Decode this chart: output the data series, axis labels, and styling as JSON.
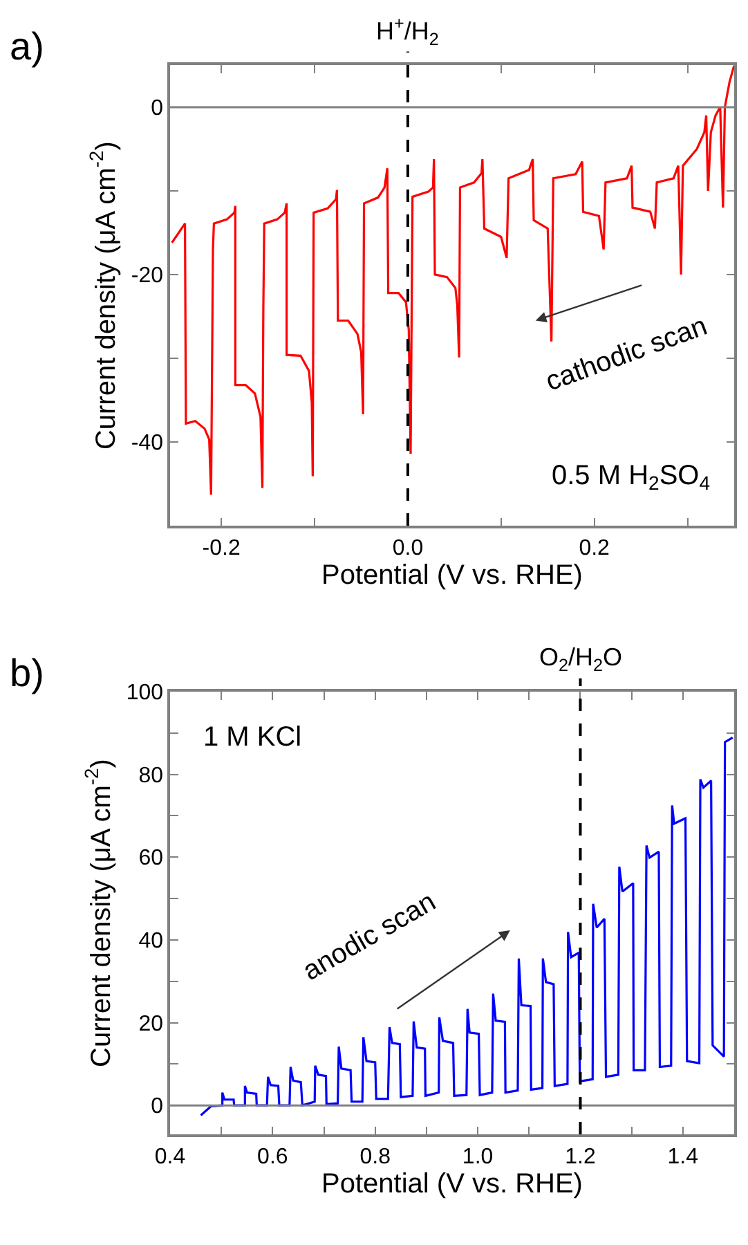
{
  "chart_data": [
    {
      "type": "line",
      "title": "a)",
      "xlabel": "Potential (V vs. RHE)",
      "ylabel": "Current density (μA cm$^{-2}$)",
      "x": [
        -0.253,
        -0.239,
        -0.238,
        -0.228,
        -0.218,
        -0.213,
        -0.211,
        -0.209,
        -0.208,
        -0.194,
        -0.186,
        -0.185,
        -0.185,
        -0.174,
        -0.164,
        -0.158,
        -0.156,
        -0.155,
        -0.154,
        -0.14,
        -0.132,
        -0.13,
        -0.13,
        -0.115,
        -0.106,
        -0.103,
        -0.102,
        -0.101,
        -0.086,
        -0.077,
        -0.076,
        -0.075,
        -0.064,
        -0.054,
        -0.05,
        -0.048,
        -0.047,
        -0.032,
        -0.025,
        -0.022,
        -0.021,
        -0.01,
        -0.002,
        0.001,
        0.003,
        0.005,
        0.022,
        0.027,
        0.028,
        0.029,
        0.042,
        0.051,
        0.053,
        0.055,
        0.056,
        0.071,
        0.079,
        0.08,
        0.082,
        0.1,
        0.106,
        0.108,
        0.13,
        0.134,
        0.135,
        0.15,
        0.154,
        0.156,
        0.18,
        0.187,
        0.188,
        0.205,
        0.21,
        0.212,
        0.235,
        0.24,
        0.241,
        0.26,
        0.265,
        0.267,
        0.285,
        0.29,
        0.291,
        0.293,
        0.295,
        0.31,
        0.318,
        0.32,
        0.322,
        0.325,
        0.33,
        0.335,
        0.338,
        0.34,
        0.345,
        0.35
      ],
      "series": [
        {
          "color": "#ff0000",
          "values": [
            -16.2,
            -13.9,
            -37.8,
            -37.5,
            -38.4,
            -39.7,
            -46.3,
            -17.0,
            -13.9,
            -13.4,
            -12.6,
            -11.8,
            -33.2,
            -33.2,
            -34.2,
            -37.0,
            -45.5,
            -24.4,
            -13.9,
            -13.4,
            -12.6,
            -11.5,
            -29.6,
            -29.7,
            -31.5,
            -35.3,
            -44.1,
            -12.6,
            -12.1,
            -11.0,
            -9.9,
            -25.5,
            -25.5,
            -27.1,
            -29.3,
            -36.7,
            -11.5,
            -10.8,
            -9.6,
            -7.3,
            -22.2,
            -22.2,
            -23.3,
            -26.6,
            -41.4,
            -10.7,
            -10.1,
            -9.6,
            -6.2,
            -20.0,
            -20.3,
            -21.6,
            -23.6,
            -29.9,
            -9.6,
            -9.0,
            -7.9,
            -6.2,
            -14.5,
            -15.5,
            -18.0,
            -8.5,
            -7.5,
            -6.2,
            -13.5,
            -14.5,
            -28.0,
            -8.5,
            -8.0,
            -6.5,
            -12.5,
            -13.0,
            -17.0,
            -9.0,
            -8.5,
            -7.0,
            -12.0,
            -12.5,
            -14.5,
            -9.0,
            -8.5,
            -7.0,
            -11.0,
            -20.0,
            -7.0,
            -5.0,
            -3.0,
            -1.0,
            -10.0,
            -3.0,
            -1.0,
            0.0,
            -12.0,
            0.0,
            3.0,
            5.0
          ]
        }
      ],
      "xlim": [
        -0.255,
        0.35
      ],
      "xticks": [
        {
          "value": -0.2,
          "label": "-0.2"
        },
        {
          "value": -0.1,
          "label": null
        },
        {
          "value": 0.0,
          "label": "0.0"
        },
        {
          "value": 0.1,
          "label": null
        },
        {
          "value": 0.2,
          "label": "0.2"
        },
        {
          "value": 0.3,
          "label": null
        }
      ],
      "ylim": [
        -50,
        5
      ],
      "yticks": [
        {
          "value": -40,
          "label": "-40"
        },
        {
          "value": -30,
          "label": null
        },
        {
          "value": -20,
          "label": "-20"
        },
        {
          "value": -10,
          "label": null
        },
        {
          "value": 0,
          "label": "0"
        }
      ],
      "ref_lines": [
        {
          "axis": "y",
          "value": 0,
          "color": "#808080",
          "line_style": "solid"
        },
        {
          "axis": "x",
          "value": 0,
          "label": "H$^{+}$/H$_{2}$",
          "color": "#000000",
          "line_style": "dashed"
        }
      ],
      "annotations": [
        "cathodic scan",
        "0.5 M H$_{2}$SO$_{4}$"
      ]
    },
    {
      "type": "line",
      "title": "b)",
      "xlabel": "Potential (V vs. RHE)",
      "ylabel": "Current density (μA cm$^{-2}$)",
      "x": [
        0.46,
        0.48,
        0.502,
        0.502,
        0.506,
        0.524,
        0.525,
        0.546,
        0.546,
        0.55,
        0.568,
        0.569,
        0.589,
        0.591,
        0.596,
        0.611,
        0.613,
        0.633,
        0.635,
        0.64,
        0.655,
        0.658,
        0.682,
        0.683,
        0.689,
        0.704,
        0.705,
        0.727,
        0.729,
        0.734,
        0.752,
        0.754,
        0.775,
        0.777,
        0.783,
        0.8,
        0.802,
        0.825,
        0.828,
        0.833,
        0.848,
        0.85,
        0.873,
        0.875,
        0.881,
        0.897,
        0.898,
        0.924,
        0.925,
        0.932,
        0.952,
        0.954,
        0.978,
        0.98,
        0.984,
        1.002,
        1.004,
        1.028,
        1.03,
        1.035,
        1.053,
        1.054,
        1.078,
        1.08,
        1.085,
        1.103,
        1.104,
        1.126,
        1.127,
        1.133,
        1.148,
        1.15,
        1.175,
        1.176,
        1.182,
        1.197,
        1.199,
        1.224,
        1.225,
        1.232,
        1.247,
        1.25,
        1.274,
        1.276,
        1.282,
        1.303,
        1.304,
        1.326,
        1.329,
        1.335,
        1.353,
        1.355,
        1.377,
        1.379,
        1.383,
        1.405,
        1.408,
        1.432,
        1.434,
        1.44,
        1.455,
        1.458,
        1.48,
        1.482,
        1.489,
        1.497
      ],
      "series": [
        {
          "color": "#0000ff",
          "values": [
            -2.4,
            -0.2,
            0,
            3.1,
            1.4,
            1.4,
            0,
            0,
            4.7,
            3.1,
            2.8,
            0,
            0,
            6.9,
            4.9,
            4.7,
            0,
            0,
            9.3,
            6.0,
            5.6,
            0,
            0.9,
            9.6,
            7.4,
            7.1,
            0.3,
            0.5,
            14.2,
            8.9,
            8.5,
            0.9,
            0.9,
            16.5,
            10.7,
            10.4,
            1.6,
            1.6,
            18.9,
            15.1,
            14.8,
            2.0,
            2.3,
            20.3,
            14.0,
            13.7,
            2.3,
            3.1,
            21.3,
            15.6,
            15.1,
            2.3,
            2.5,
            23.3,
            17.6,
            17.3,
            2.5,
            3.1,
            27.0,
            20.5,
            20.2,
            3.1,
            3.6,
            35.5,
            24.2,
            24.0,
            3.8,
            4.2,
            35.5,
            29.8,
            29.3,
            4.7,
            5.2,
            41.9,
            35.8,
            36.9,
            5.8,
            6.3,
            48.7,
            43.0,
            45.1,
            6.9,
            7.4,
            57.7,
            51.7,
            53.7,
            8.5,
            8.5,
            62.8,
            59.9,
            61.3,
            9.3,
            9.6,
            72.5,
            68.1,
            69.4,
            10.7,
            10.2,
            78.8,
            76.8,
            78.5,
            14.5,
            11.8,
            87.8,
            88.3,
            88.9
          ]
        }
      ],
      "xlim": [
        0.4,
        1.5
      ],
      "xticks": [
        {
          "value": 0.4,
          "label": "0.4"
        },
        {
          "value": 0.5,
          "label": null
        },
        {
          "value": 0.6,
          "label": "0.6"
        },
        {
          "value": 0.7,
          "label": null
        },
        {
          "value": 0.8,
          "label": "0.8"
        },
        {
          "value": 0.9,
          "label": null
        },
        {
          "value": 1.0,
          "label": "1.0"
        },
        {
          "value": 1.1,
          "label": null
        },
        {
          "value": 1.2,
          "label": "1.2"
        },
        {
          "value": 1.3,
          "label": null
        },
        {
          "value": 1.4,
          "label": "1.4"
        }
      ],
      "ylim": [
        -7,
        100
      ],
      "yticks": [
        {
          "value": 0,
          "label": "0"
        },
        {
          "value": 10,
          "label": null
        },
        {
          "value": 20,
          "label": "20"
        },
        {
          "value": 30,
          "label": null
        },
        {
          "value": 40,
          "label": "40"
        },
        {
          "value": 50,
          "label": null
        },
        {
          "value": 60,
          "label": "60"
        },
        {
          "value": 70,
          "label": null
        },
        {
          "value": 80,
          "label": "80"
        },
        {
          "value": 90,
          "label": null
        },
        {
          "value": 100,
          "label": "100"
        }
      ],
      "ref_lines": [
        {
          "axis": "y",
          "value": 0,
          "color": "#808080",
          "line_style": "solid"
        },
        {
          "axis": "x",
          "value": 1.2,
          "label": "O$_{2}$/H$_{2}$O",
          "color": "#000000",
          "line_style": "dashed"
        }
      ],
      "annotations": [
        "1 M KCl",
        "anodic scan"
      ]
    }
  ]
}
